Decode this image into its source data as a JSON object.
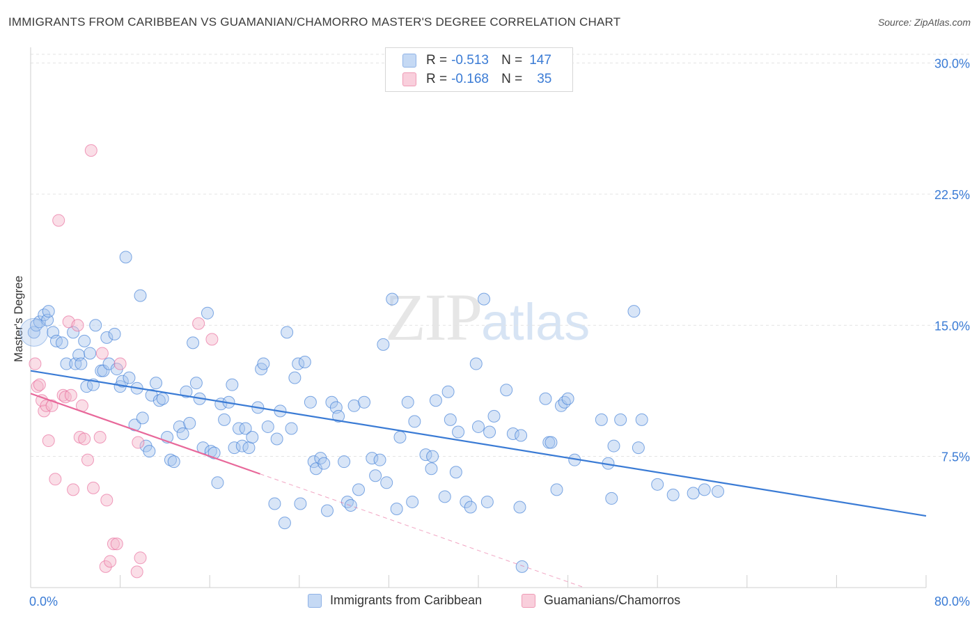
{
  "header": {
    "title": "IMMIGRANTS FROM CARIBBEAN VS GUAMANIAN/CHAMORRO MASTER'S DEGREE CORRELATION CHART",
    "source": "Source: ZipAtlas.com"
  },
  "watermark": {
    "zip": "ZIP",
    "atlas": "atlas"
  },
  "stats_legend": {
    "rows": [
      {
        "r_label": "R =",
        "r_value": "-0.513",
        "n_label": "N =",
        "n_value": "147",
        "color": "#a9c6ee"
      },
      {
        "r_label": "R =",
        "r_value": "-0.168",
        "n_label": "N =",
        "n_value": "35",
        "color": "#f5b6c9"
      }
    ]
  },
  "bottom_legend": {
    "items": [
      {
        "label": "Immigrants from Caribbean",
        "color": "#a9c6ee"
      },
      {
        "label": "Guamanians/Chamorros",
        "color": "#f5b6c9"
      }
    ]
  },
  "chart_data": {
    "type": "scatter",
    "title": "IMMIGRANTS FROM CARIBBEAN VS GUAMANIAN/CHAMORRO MASTER'S DEGREE CORRELATION CHART",
    "xlabel": "",
    "ylabel": "Master's Degree",
    "xlim": [
      0,
      80
    ],
    "ylim": [
      0,
      30.5
    ],
    "x_tick_labels": [
      "0.0%",
      "80.0%"
    ],
    "y_ticks": [
      7.5,
      15.0,
      22.5,
      30.0
    ],
    "y_tick_labels": [
      "7.5%",
      "15.0%",
      "22.5%",
      "30.0%"
    ],
    "grid": true,
    "series": [
      {
        "name": "Immigrants from Caribbean",
        "color": "#3a7bd5",
        "fill": "#a9c6ee",
        "trend": {
          "x0": 0,
          "y0": 12.4,
          "x1": 80,
          "y1": 4.1,
          "style": "solid"
        },
        "points": [
          [
            0.3,
            14.6
          ],
          [
            0.5,
            15.0
          ],
          [
            0.8,
            15.2
          ],
          [
            1.2,
            15.6
          ],
          [
            1.5,
            15.3
          ],
          [
            1.6,
            15.8
          ],
          [
            2.0,
            14.6
          ],
          [
            2.3,
            14.1
          ],
          [
            2.8,
            14.0
          ],
          [
            3.2,
            12.8
          ],
          [
            3.8,
            14.6
          ],
          [
            4.0,
            12.8
          ],
          [
            4.3,
            13.3
          ],
          [
            4.5,
            12.8
          ],
          [
            4.8,
            14.1
          ],
          [
            5.0,
            11.5
          ],
          [
            5.3,
            13.4
          ],
          [
            5.6,
            11.6
          ],
          [
            5.8,
            15.0
          ],
          [
            6.3,
            12.4
          ],
          [
            6.5,
            12.4
          ],
          [
            6.8,
            14.3
          ],
          [
            7.0,
            12.8
          ],
          [
            7.5,
            14.5
          ],
          [
            7.7,
            12.5
          ],
          [
            8.0,
            11.5
          ],
          [
            8.2,
            11.8
          ],
          [
            8.5,
            18.9
          ],
          [
            8.8,
            12.0
          ],
          [
            9.3,
            9.3
          ],
          [
            9.5,
            11.4
          ],
          [
            9.8,
            16.7
          ],
          [
            10.0,
            9.7
          ],
          [
            10.3,
            8.1
          ],
          [
            10.6,
            7.8
          ],
          [
            10.8,
            11.0
          ],
          [
            11.2,
            11.7
          ],
          [
            11.5,
            10.7
          ],
          [
            11.8,
            10.8
          ],
          [
            12.2,
            8.6
          ],
          [
            12.5,
            7.3
          ],
          [
            12.8,
            7.2
          ],
          [
            13.3,
            9.2
          ],
          [
            13.6,
            8.8
          ],
          [
            13.9,
            11.2
          ],
          [
            14.2,
            9.4
          ],
          [
            14.5,
            14.0
          ],
          [
            14.8,
            11.7
          ],
          [
            15.1,
            10.8
          ],
          [
            15.4,
            8.0
          ],
          [
            15.8,
            15.7
          ],
          [
            16.1,
            7.8
          ],
          [
            16.4,
            7.7
          ],
          [
            16.7,
            6.0
          ],
          [
            17.0,
            10.5
          ],
          [
            17.3,
            9.6
          ],
          [
            17.7,
            10.6
          ],
          [
            18.0,
            11.6
          ],
          [
            18.2,
            8.0
          ],
          [
            18.6,
            9.1
          ],
          [
            18.9,
            8.1
          ],
          [
            19.2,
            9.1
          ],
          [
            19.5,
            8.0
          ],
          [
            19.8,
            8.6
          ],
          [
            20.3,
            10.3
          ],
          [
            20.6,
            12.5
          ],
          [
            20.8,
            12.8
          ],
          [
            21.2,
            9.2
          ],
          [
            21.8,
            4.8
          ],
          [
            22.0,
            8.5
          ],
          [
            22.3,
            10.1
          ],
          [
            22.7,
            3.7
          ],
          [
            22.9,
            14.6
          ],
          [
            23.3,
            9.1
          ],
          [
            23.6,
            12.0
          ],
          [
            23.9,
            12.8
          ],
          [
            24.1,
            4.8
          ],
          [
            24.5,
            12.9
          ],
          [
            25.0,
            10.6
          ],
          [
            25.3,
            7.2
          ],
          [
            25.5,
            6.8
          ],
          [
            25.9,
            7.4
          ],
          [
            26.2,
            7.1
          ],
          [
            26.5,
            4.4
          ],
          [
            26.9,
            10.6
          ],
          [
            27.3,
            10.3
          ],
          [
            27.5,
            9.8
          ],
          [
            28.0,
            7.2
          ],
          [
            28.3,
            4.9
          ],
          [
            28.6,
            4.7
          ],
          [
            28.9,
            10.4
          ],
          [
            29.3,
            5.6
          ],
          [
            29.8,
            10.6
          ],
          [
            30.5,
            7.4
          ],
          [
            30.8,
            6.4
          ],
          [
            31.2,
            7.3
          ],
          [
            31.5,
            13.9
          ],
          [
            31.8,
            6.0
          ],
          [
            32.3,
            16.5
          ],
          [
            32.7,
            4.5
          ],
          [
            33.0,
            8.6
          ],
          [
            33.7,
            10.6
          ],
          [
            34.1,
            4.9
          ],
          [
            34.3,
            9.5
          ],
          [
            35.3,
            7.6
          ],
          [
            35.8,
            6.8
          ],
          [
            35.9,
            7.5
          ],
          [
            36.2,
            10.7
          ],
          [
            37.0,
            5.2
          ],
          [
            37.3,
            11.2
          ],
          [
            37.5,
            9.6
          ],
          [
            38.0,
            6.6
          ],
          [
            38.2,
            8.9
          ],
          [
            38.9,
            4.9
          ],
          [
            39.3,
            4.6
          ],
          [
            39.8,
            12.8
          ],
          [
            40.0,
            9.2
          ],
          [
            40.5,
            16.5
          ],
          [
            40.8,
            4.9
          ],
          [
            41.0,
            8.9
          ],
          [
            41.4,
            9.8
          ],
          [
            42.5,
            11.3
          ],
          [
            43.1,
            8.8
          ],
          [
            43.7,
            4.6
          ],
          [
            43.8,
            8.7
          ],
          [
            43.9,
            1.2
          ],
          [
            46.0,
            10.8
          ],
          [
            46.3,
            8.3
          ],
          [
            46.5,
            8.3
          ],
          [
            47.0,
            5.6
          ],
          [
            47.4,
            10.4
          ],
          [
            47.7,
            10.6
          ],
          [
            48.0,
            10.8
          ],
          [
            48.6,
            7.3
          ],
          [
            51.0,
            9.6
          ],
          [
            51.6,
            7.1
          ],
          [
            51.9,
            5.1
          ],
          [
            52.1,
            8.1
          ],
          [
            53.9,
            15.8
          ],
          [
            54.3,
            8.0
          ],
          [
            54.6,
            9.6
          ],
          [
            56.0,
            5.9
          ],
          [
            57.4,
            5.3
          ],
          [
            59.2,
            5.4
          ],
          [
            60.2,
            5.6
          ],
          [
            61.4,
            5.5
          ],
          [
            52.7,
            9.6
          ]
        ]
      },
      {
        "name": "Guamanians/Chamorros",
        "color": "#e8689a",
        "fill": "#f5b6c9",
        "trend": {
          "x0": 0,
          "y0": 11.1,
          "x1": 20.5,
          "y1": 6.5,
          "style": "solid",
          "extend_to_x": 60,
          "extend_to_y": -2.5
        },
        "points": [
          [
            0.4,
            12.8
          ],
          [
            0.6,
            11.5
          ],
          [
            0.8,
            11.6
          ],
          [
            1.0,
            10.7
          ],
          [
            1.2,
            10.1
          ],
          [
            1.4,
            10.4
          ],
          [
            1.6,
            8.4
          ],
          [
            1.9,
            10.4
          ],
          [
            2.2,
            6.2
          ],
          [
            2.5,
            21.0
          ],
          [
            2.9,
            11.0
          ],
          [
            3.1,
            10.9
          ],
          [
            3.4,
            15.2
          ],
          [
            3.6,
            11.0
          ],
          [
            3.8,
            5.6
          ],
          [
            4.2,
            15.0
          ],
          [
            4.4,
            8.6
          ],
          [
            4.6,
            10.4
          ],
          [
            4.8,
            8.5
          ],
          [
            5.1,
            7.3
          ],
          [
            5.4,
            25.0
          ],
          [
            5.6,
            5.7
          ],
          [
            6.2,
            8.6
          ],
          [
            6.4,
            13.4
          ],
          [
            6.7,
            1.2
          ],
          [
            6.8,
            5.0
          ],
          [
            7.1,
            1.5
          ],
          [
            7.4,
            2.5
          ],
          [
            7.7,
            2.5
          ],
          [
            8.0,
            12.8
          ],
          [
            9.5,
            0.9
          ],
          [
            9.6,
            8.3
          ],
          [
            9.8,
            1.7
          ],
          [
            15.0,
            15.1
          ],
          [
            16.2,
            14.2
          ]
        ]
      }
    ]
  }
}
